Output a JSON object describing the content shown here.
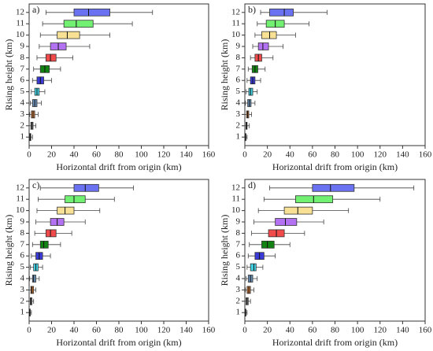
{
  "chart_data": [
    {
      "type": "box",
      "title": "a)",
      "xlabel": "Horizontal drift from origin (km)",
      "ylabel": "Rising height (km)",
      "categories": [
        "1",
        "2",
        "3",
        "4",
        "5",
        "6",
        "7",
        "8",
        "9",
        "10",
        "11",
        "12"
      ],
      "colors": [
        "#333333",
        "#8a8a8a",
        "#c8783a",
        "#6a90b8",
        "#40d4e4",
        "#3a3ad8",
        "#128212",
        "#f04a4a",
        "#b272f2",
        "#f8e094",
        "#72f072",
        "#6a72f2"
      ],
      "values": [
        [
          0,
          0.5,
          1,
          1.5,
          3
        ],
        [
          0,
          1.5,
          2.5,
          3.5,
          6
        ],
        [
          0.5,
          2,
          3.5,
          5,
          8
        ],
        [
          1,
          3,
          5,
          7,
          11
        ],
        [
          2,
          5,
          7,
          9,
          14
        ],
        [
          3,
          7,
          10,
          13,
          20
        ],
        [
          4,
          10,
          14,
          18,
          28
        ],
        [
          7,
          15,
          19,
          24,
          39
        ],
        [
          9,
          19,
          26,
          33,
          54
        ],
        [
          10,
          25,
          34,
          45,
          72
        ],
        [
          12,
          31,
          42,
          57,
          92
        ],
        [
          15,
          40,
          53,
          72,
          110
        ]
      ],
      "xlim": [
        0,
        160
      ],
      "xticks": [
        0,
        20,
        40,
        60,
        80,
        100,
        120,
        140,
        160
      ]
    },
    {
      "type": "box",
      "title": "b)",
      "xlabel": "Horizontal drift from origin (km)",
      "ylabel": "Rising height (km)",
      "categories": [
        "1",
        "2",
        "3",
        "4",
        "5",
        "6",
        "7",
        "8",
        "9",
        "10",
        "11",
        "12"
      ],
      "colors": [
        "#333333",
        "#8a8a8a",
        "#c8783a",
        "#6a90b8",
        "#40d4e4",
        "#3a3ad8",
        "#128212",
        "#f04a4a",
        "#b272f2",
        "#f8e094",
        "#72f072",
        "#6a72f2"
      ],
      "values": [
        [
          0,
          0.3,
          0.6,
          1,
          2
        ],
        [
          0,
          1,
          1.5,
          2,
          4
        ],
        [
          0,
          1.5,
          2.5,
          3.5,
          6
        ],
        [
          0.5,
          2.5,
          4,
          5.5,
          9
        ],
        [
          1,
          3.5,
          5,
          7,
          11
        ],
        [
          2,
          5,
          7,
          9,
          14
        ],
        [
          3,
          6.5,
          9,
          11.5,
          18
        ],
        [
          5,
          9,
          12,
          15,
          25
        ],
        [
          7,
          12,
          16,
          21,
          34
        ],
        [
          9,
          15,
          22,
          28,
          45
        ],
        [
          11,
          19,
          27,
          35,
          57
        ],
        [
          14,
          22,
          35,
          43,
          73
        ]
      ],
      "xlim": [
        0,
        160
      ],
      "xticks": [
        0,
        20,
        40,
        60,
        80,
        100,
        120,
        140,
        160
      ]
    },
    {
      "type": "box",
      "title": "c)",
      "xlabel": "Horizontal drift from origin (km)",
      "ylabel": "Rising height (km)",
      "categories": [
        "1",
        "2",
        "3",
        "4",
        "5",
        "6",
        "7",
        "8",
        "9",
        "10",
        "11",
        "12"
      ],
      "colors": [
        "#333333",
        "#8a8a8a",
        "#c8783a",
        "#6a90b8",
        "#40d4e4",
        "#3a3ad8",
        "#128212",
        "#f04a4a",
        "#b272f2",
        "#f8e094",
        "#72f072",
        "#6a72f2"
      ],
      "values": [
        [
          0,
          0.3,
          0.6,
          1,
          2
        ],
        [
          0,
          1,
          1.5,
          2.5,
          4
        ],
        [
          0,
          1.5,
          2.5,
          4,
          6
        ],
        [
          0.5,
          3,
          4,
          6,
          9
        ],
        [
          1,
          4,
          6,
          8,
          12
        ],
        [
          2,
          6,
          9,
          12,
          19
        ],
        [
          3,
          10,
          13,
          17,
          28
        ],
        [
          5,
          15,
          19,
          24,
          38
        ],
        [
          6,
          19,
          25,
          31,
          50
        ],
        [
          7,
          25,
          32,
          40,
          63
        ],
        [
          8,
          32,
          40,
          50,
          76
        ],
        [
          10,
          40,
          50,
          62,
          93
        ]
      ],
      "xlim": [
        0,
        160
      ],
      "xticks": [
        0,
        20,
        40,
        60,
        80,
        100,
        120,
        140,
        160
      ]
    },
    {
      "type": "box",
      "title": "d)",
      "xlabel": "Horizontal drift from origin (km)",
      "ylabel": "Rising height (km)",
      "categories": [
        "1",
        "2",
        "3",
        "4",
        "5",
        "6",
        "7",
        "8",
        "9",
        "10",
        "11",
        "12"
      ],
      "colors": [
        "#333333",
        "#8a8a8a",
        "#c8783a",
        "#6a90b8",
        "#40d4e4",
        "#3a3ad8",
        "#128212",
        "#f04a4a",
        "#b272f2",
        "#f8e094",
        "#72f072",
        "#6a72f2"
      ],
      "values": [
        [
          0,
          0.3,
          0.7,
          1,
          2
        ],
        [
          0,
          1,
          2,
          3,
          5
        ],
        [
          0.5,
          2,
          3.5,
          5,
          8
        ],
        [
          1,
          3,
          5,
          7,
          11
        ],
        [
          2,
          5,
          8,
          10,
          16
        ],
        [
          3,
          9,
          13,
          17,
          27
        ],
        [
          4,
          15,
          20,
          26,
          40
        ],
        [
          6,
          21,
          28,
          35,
          53
        ],
        [
          8,
          27,
          36,
          46,
          70
        ],
        [
          12,
          35,
          47,
          60,
          92
        ],
        [
          17,
          45,
          61,
          78,
          120
        ],
        [
          22,
          60,
          76,
          97,
          150
        ]
      ],
      "xlim": [
        0,
        160
      ],
      "xticks": [
        0,
        20,
        40,
        60,
        80,
        100,
        120,
        140,
        160
      ]
    }
  ]
}
